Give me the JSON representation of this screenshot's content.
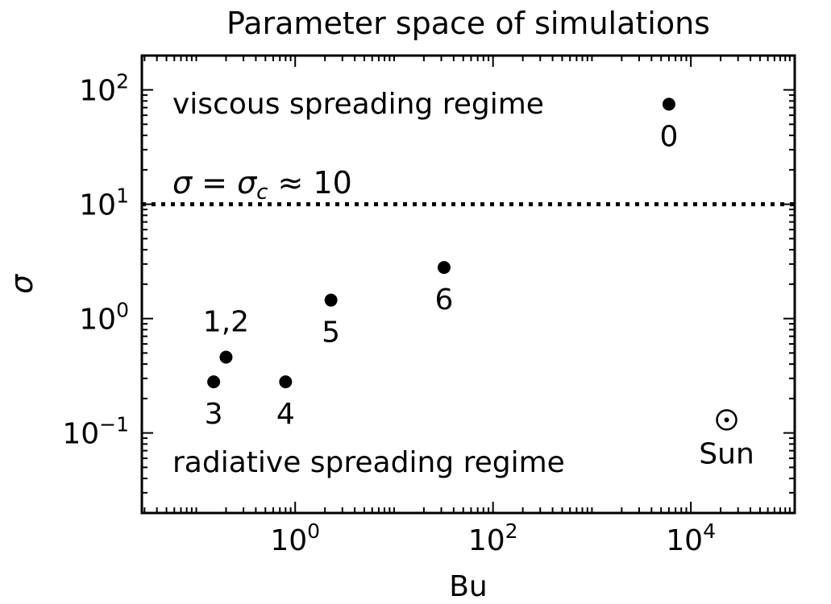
{
  "chart_data": {
    "type": "scatter",
    "title": "Parameter space of simulations",
    "xlabel": "Bu",
    "ylabel": "σ",
    "xscale": "log",
    "yscale": "log",
    "xlim_log10": [
      -1.55,
      5.05
    ],
    "ylim_log10": [
      -1.7,
      2.3
    ],
    "xticks": [
      {
        "exp": 0,
        "base": "10",
        "sup": "0"
      },
      {
        "exp": 2,
        "base": "10",
        "sup": "2"
      },
      {
        "exp": 4,
        "base": "10",
        "sup": "4"
      }
    ],
    "yticks": [
      {
        "exp": 2,
        "base": "10",
        "sup": "2"
      },
      {
        "exp": 1,
        "base": "10",
        "sup": "1"
      },
      {
        "exp": 0,
        "base": "10",
        "sup": "0"
      },
      {
        "exp": -1,
        "base": "10",
        "sup": "−1"
      }
    ],
    "points": [
      {
        "label": "0",
        "x": 6000,
        "y": 75,
        "label_pos": "below"
      },
      {
        "label": "6",
        "x": 32,
        "y": 2.8,
        "label_pos": "below"
      },
      {
        "label": "5",
        "x": 2.3,
        "y": 1.45,
        "label_pos": "below"
      },
      {
        "label": "1,2",
        "x": 0.2,
        "y": 0.46,
        "label_pos": "above"
      },
      {
        "label": "3",
        "x": 0.15,
        "y": 0.28,
        "label_pos": "below"
      },
      {
        "label": "4",
        "x": 0.8,
        "y": 0.28,
        "label_pos": "below"
      }
    ],
    "sun": {
      "label": "Sun",
      "symbol": "⊙",
      "x": 23000,
      "y": 0.13
    },
    "critical_line": {
      "y": 10,
      "style": "dotted",
      "label": "σ = σ",
      "label_sub": "c",
      "label_tail": " ≈ 10"
    },
    "annotations": {
      "upper_region": "viscous spreading regime",
      "lower_region": "radiative spreading regime"
    }
  }
}
